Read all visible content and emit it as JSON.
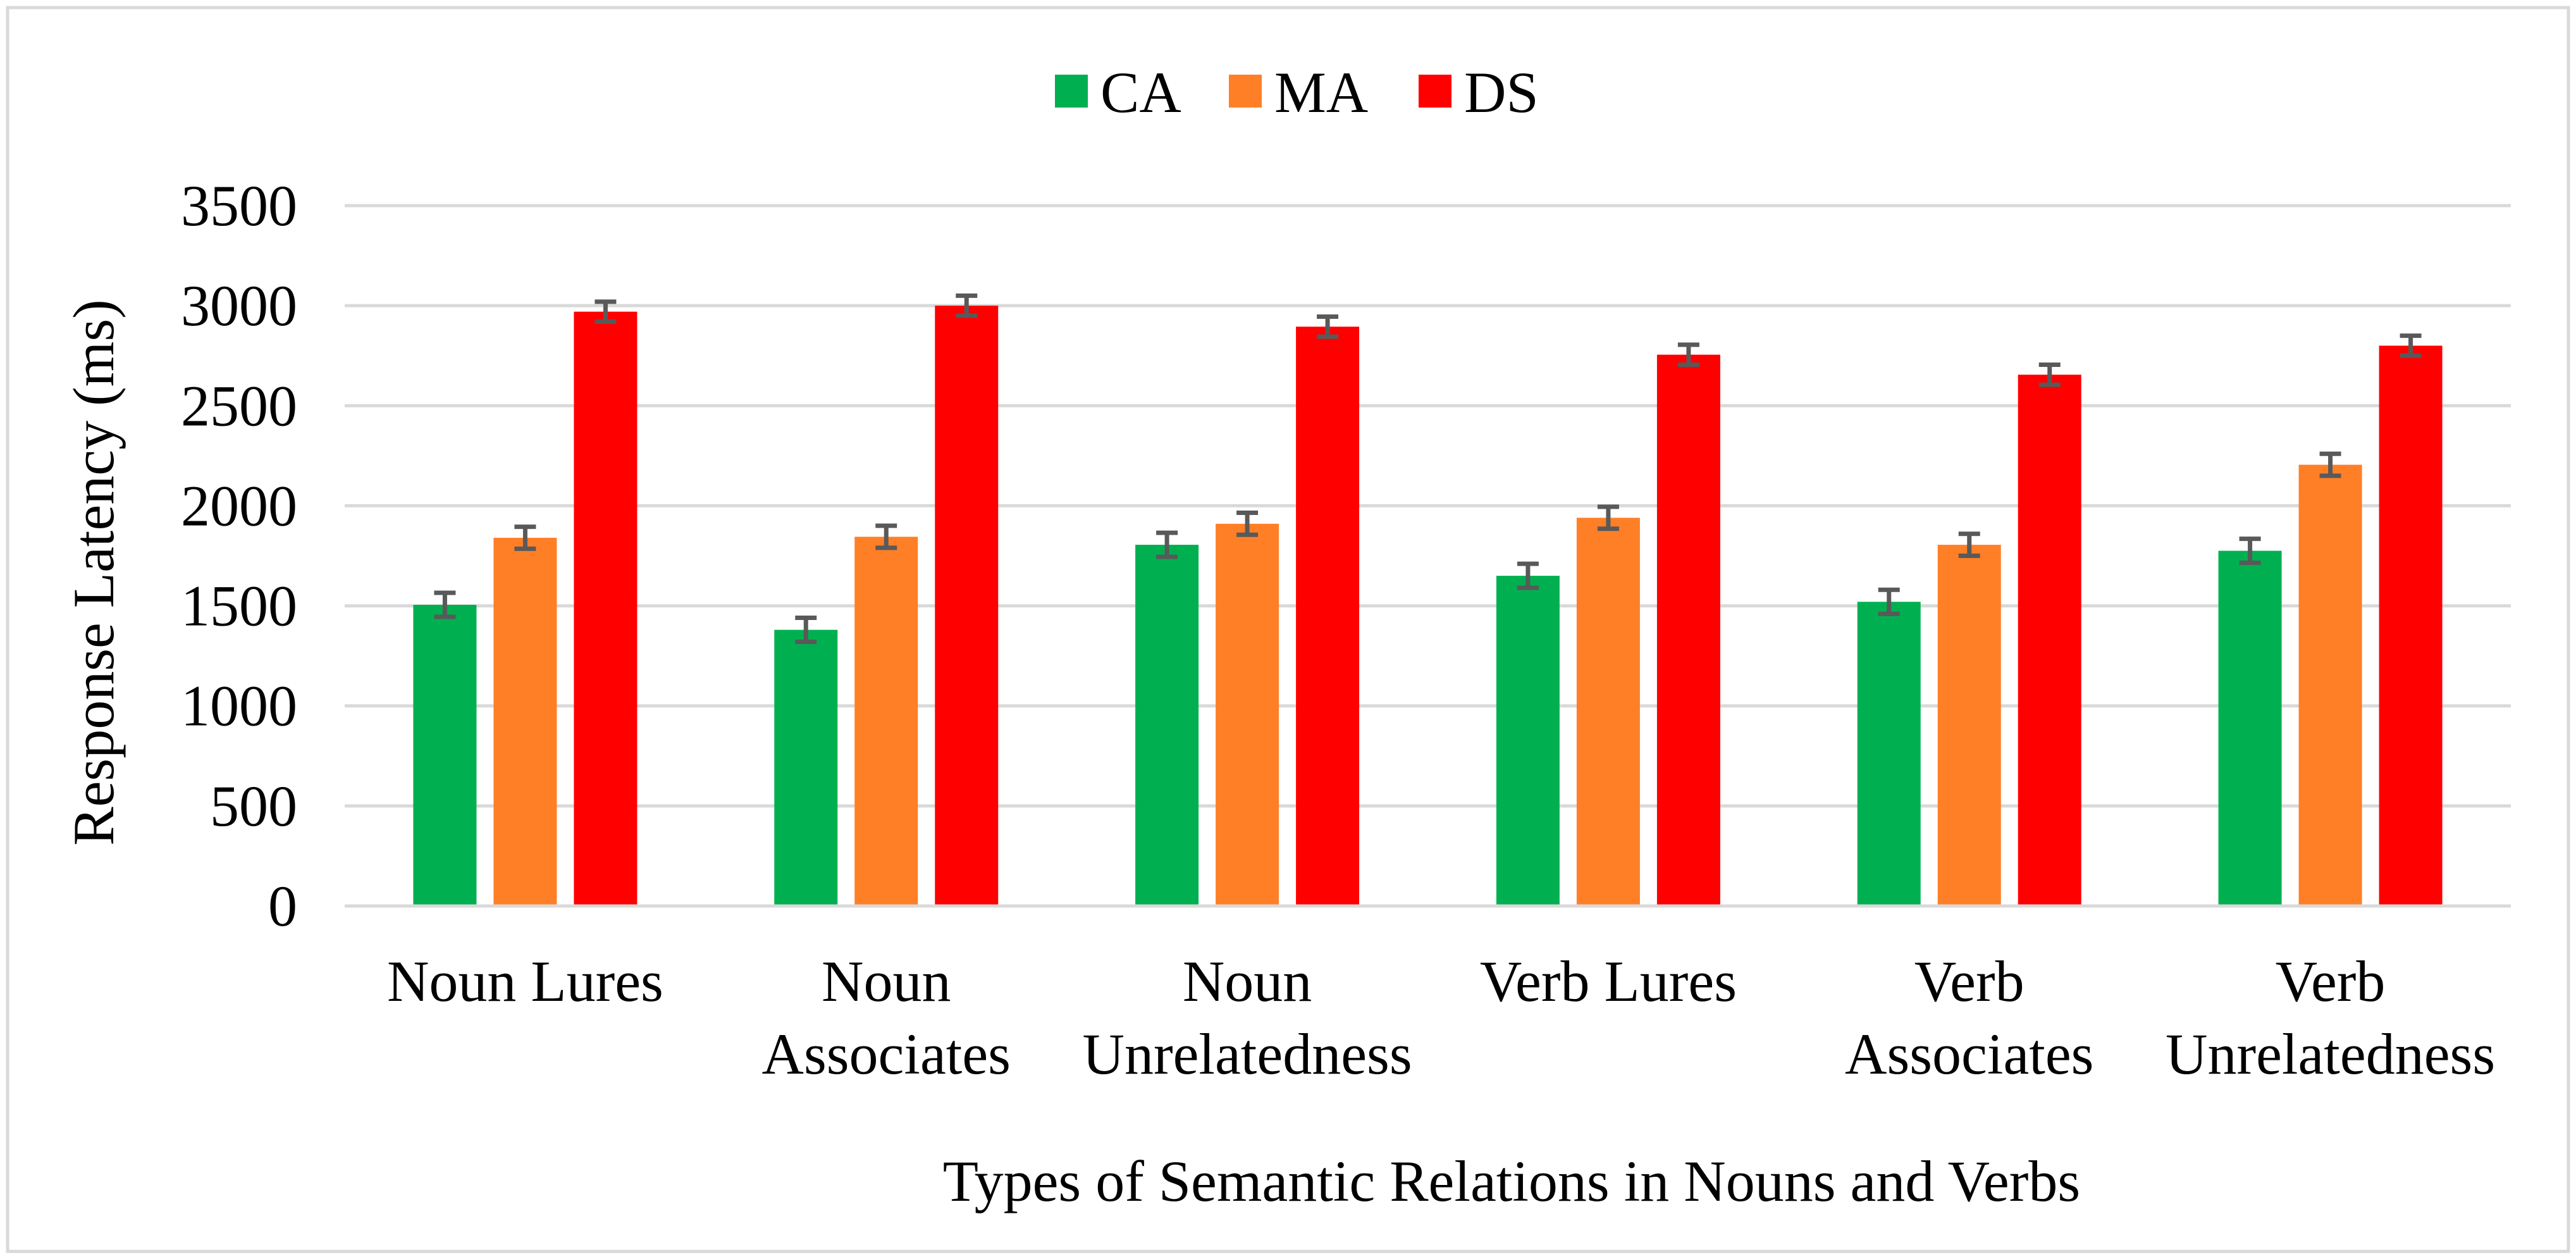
{
  "chart_data": {
    "type": "bar",
    "title": "",
    "xlabel": "Types of Semantic Relations in Nouns and Verbs",
    "ylabel": "Response Latency (ms)",
    "ylim": [
      0,
      3500
    ],
    "yticks": [
      0,
      500,
      1000,
      1500,
      2000,
      2500,
      3000,
      3500
    ],
    "grid": true,
    "legend": "top-center",
    "error_bars": true,
    "categories": [
      [
        "Noun Lures"
      ],
      [
        "Noun",
        "Associates"
      ],
      [
        "Noun",
        "Unrelatedness"
      ],
      [
        "Verb Lures"
      ],
      [
        "Verb",
        "Associates"
      ],
      [
        "Verb",
        "Unrelatedness"
      ]
    ],
    "series": [
      {
        "name": "CA",
        "color": "#00b050",
        "values": [
          1505,
          1380,
          1805,
          1650,
          1520,
          1775
        ],
        "errors": [
          60,
          60,
          60,
          60,
          60,
          60
        ]
      },
      {
        "name": "MA",
        "color": "#ff7f27",
        "values": [
          1840,
          1845,
          1910,
          1940,
          1805,
          2205
        ],
        "errors": [
          55,
          55,
          55,
          55,
          55,
          55
        ]
      },
      {
        "name": "DS",
        "color": "#ff0000",
        "values": [
          2970,
          3000,
          2895,
          2755,
          2655,
          2800
        ],
        "errors": [
          50,
          50,
          50,
          50,
          50,
          50
        ]
      }
    ]
  }
}
